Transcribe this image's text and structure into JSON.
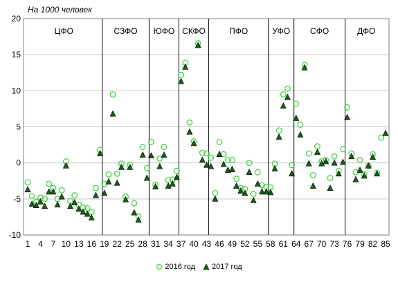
{
  "chart_data": {
    "type": "scatter",
    "unit_label": "На 1000 человек",
    "ylim": [
      -10,
      20
    ],
    "y_ticks": [
      -10,
      -5,
      0,
      5,
      10,
      15,
      20
    ],
    "xlim": [
      1,
      85
    ],
    "x_ticks": [
      1,
      4,
      7,
      10,
      13,
      16,
      19,
      22,
      25,
      28,
      31,
      34,
      37,
      40,
      43,
      46,
      49,
      52,
      55,
      58,
      61,
      64,
      67,
      70,
      73,
      76,
      79,
      82,
      85
    ],
    "grid": "horizontal",
    "legend_position": "bottom",
    "districts": [
      {
        "label": "ЦФО",
        "x_from": 1,
        "x_to": 18
      },
      {
        "label": "СЗФО",
        "x_from": 19,
        "x_to": 29
      },
      {
        "label": "ЮФО",
        "x_from": 30,
        "x_to": 36
      },
      {
        "label": "СКФО",
        "x_from": 37,
        "x_to": 43
      },
      {
        "label": "ПФО",
        "x_from": 44,
        "x_to": 57
      },
      {
        "label": "УФО",
        "x_from": 58,
        "x_to": 63
      },
      {
        "label": "СФО",
        "x_from": 64,
        "x_to": 75
      },
      {
        "label": "ДФО",
        "x_from": 76,
        "x_to": 85
      }
    ],
    "x": [
      1,
      2,
      3,
      4,
      5,
      6,
      7,
      8,
      9,
      10,
      11,
      12,
      13,
      14,
      15,
      16,
      17,
      18,
      19,
      20,
      21,
      22,
      23,
      24,
      25,
      26,
      27,
      28,
      29,
      30,
      31,
      32,
      33,
      34,
      35,
      36,
      37,
      38,
      39,
      40,
      41,
      42,
      43,
      44,
      45,
      46,
      47,
      48,
      49,
      50,
      51,
      52,
      53,
      54,
      55,
      56,
      57,
      58,
      59,
      60,
      61,
      62,
      63,
      64,
      65,
      66,
      67,
      68,
      69,
      70,
      71,
      72,
      73,
      74,
      75,
      76,
      77,
      78,
      79,
      80,
      81,
      82,
      83,
      84,
      85
    ],
    "series": [
      {
        "name": "2016 год",
        "marker": "circle",
        "color": "#44d444",
        "values": [
          -2.7,
          -4.6,
          -5.4,
          -4.8,
          -5,
          -2.9,
          -3.5,
          -5,
          -3.8,
          0.2,
          -5.3,
          -4.5,
          -5.8,
          -6.2,
          -6.3,
          -6.8,
          -3.5,
          1.8,
          -2.9,
          -1.6,
          9.5,
          -1.5,
          -0.1,
          -4.7,
          -0.3,
          -5.6,
          -7.4,
          2.2,
          -0.7,
          2.9,
          -3,
          0.6,
          2.2,
          -2.4,
          -2.3,
          -1.1,
          12.2,
          13.9,
          5.6,
          3,
          16.6,
          1.4,
          1.3,
          0.7,
          -4.2,
          2.9,
          1.2,
          0.4,
          0.4,
          -2.2,
          -3.5,
          -3.6,
          0,
          -4.3,
          -1.3,
          -3.1,
          -3.3,
          -3.4,
          -0.1,
          4.5,
          9.5,
          10.3,
          -0.3,
          8.2,
          5.3,
          13.6,
          1.3,
          -1.7,
          2.3,
          0.2,
          0.4,
          -2.1,
          0.9,
          -1.1,
          1.9,
          7.7,
          1.3,
          -1.3,
          0.4,
          -1.6,
          -0.4,
          1.2,
          -1.4,
          3.5,
          null
        ]
      },
      {
        "name": "2017 год",
        "marker": "triangle",
        "color": "#1a5c1a",
        "values": [
          -3.7,
          -5.7,
          -5.9,
          -5.4,
          -6,
          -4,
          -4,
          -5.8,
          -4.7,
          -0.4,
          -6,
          -5.5,
          -6.4,
          -6.8,
          -7.1,
          -7.6,
          -4.5,
          1.3,
          -4.2,
          -2.6,
          6.8,
          -2.8,
          -0.6,
          -5.1,
          -0.6,
          -6.9,
          -7.9,
          1.1,
          -2.1,
          1,
          -3.3,
          -0.5,
          1.1,
          -3.2,
          -2.9,
          -2,
          11.3,
          13.3,
          4.3,
          2.7,
          16.3,
          0.4,
          -0.3,
          -0.5,
          -5,
          1.2,
          -0.2,
          -1,
          -0.9,
          -3.2,
          -3.9,
          -4.2,
          -1.3,
          -5.2,
          -2.9,
          -4,
          -4,
          -4.1,
          -0.8,
          3.6,
          7.9,
          9.1,
          -1.5,
          6.2,
          3.9,
          13.2,
          -0.1,
          -3.2,
          1.5,
          -0.1,
          0.2,
          -3.5,
          0,
          -1.5,
          0.1,
          6.3,
          0.9,
          -2.3,
          -1,
          -1.8,
          -0.4,
          0.8,
          -1.5,
          null,
          4.1
        ]
      }
    ]
  }
}
